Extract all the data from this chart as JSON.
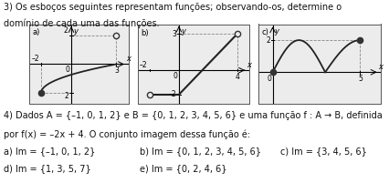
{
  "title3": "3) Os esboços seguintes representam funções; observando-os, determine o",
  "title3b": "domínio de cada uma das funções.",
  "q4_line1": "4) Dados A = {–1, 0, 1, 2} e B = {0, 1, 2, 3, 4, 5, 6} e uma função f : A → B, definida",
  "q4_line2": "por f(x) = –2x + 4. O conjunto imagem dessa função é:",
  "q4_a": "a) Im = {–1, 0, 1, 2}",
  "q4_b": "b) Im = {0, 1, 2, 3, 4, 5, 6}",
  "q4_c": "c) Im = {3, 4, 5, 6}",
  "q4_d": "d) Im = {1, 3, 5, 7}",
  "q4_e": "e) Im = {0, 2, 4, 6}",
  "plot_bg": "#ececec",
  "text_color": "#111111",
  "font_size": 7.0,
  "label_fontsize": 5.5
}
